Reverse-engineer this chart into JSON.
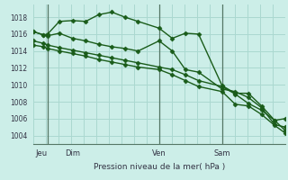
{
  "bg_color": "#cceee8",
  "grid_color": "#aad8d0",
  "line_color": "#1a5c1a",
  "title": "Pression niveau de la mer( hPa )",
  "ylabel_ticks": [
    1004,
    1006,
    1008,
    1010,
    1012,
    1014,
    1016,
    1018
  ],
  "ylim": [
    1003.0,
    1019.5
  ],
  "xlim": [
    0.0,
    9.6
  ],
  "xtick_positions": [
    0.3,
    1.5,
    4.8,
    7.2
  ],
  "xtick_labels": [
    "Jeu",
    "Dim",
    "Ven",
    "Sam"
  ],
  "vlines_x": [
    0.55,
    4.8,
    7.2
  ],
  "series": [
    {
      "x": [
        0.0,
        0.4,
        0.55,
        1.0,
        1.5,
        2.0,
        2.5,
        3.0,
        3.5,
        4.0,
        4.8,
        5.3,
        5.8,
        6.3,
        7.2,
        7.7,
        8.2,
        8.7,
        9.2,
        9.6
      ],
      "y": [
        1016.3,
        1015.9,
        1016.0,
        1017.5,
        1017.6,
        1017.5,
        1018.3,
        1018.6,
        1018.0,
        1017.5,
        1016.7,
        1015.5,
        1016.1,
        1016.0,
        1009.9,
        1009.0,
        1009.0,
        1007.5,
        1005.8,
        1006.0
      ],
      "marker": "D",
      "markersize": 2.5,
      "linewidth": 1.0
    },
    {
      "x": [
        0.0,
        0.4,
        0.55,
        1.0,
        1.5,
        2.0,
        2.5,
        3.0,
        3.5,
        4.0,
        4.8,
        5.3,
        5.8,
        6.3,
        7.2,
        7.7,
        8.2,
        8.7,
        9.2,
        9.6
      ],
      "y": [
        1016.3,
        1015.9,
        1015.8,
        1016.1,
        1015.5,
        1015.2,
        1014.8,
        1014.5,
        1014.3,
        1014.0,
        1015.2,
        1014.0,
        1011.8,
        1011.5,
        1009.5,
        1009.2,
        1008.5,
        1007.3,
        1005.3,
        1005.0
      ],
      "marker": "D",
      "markersize": 2.5,
      "linewidth": 1.0
    },
    {
      "x": [
        0.0,
        0.4,
        0.55,
        1.0,
        1.5,
        2.0,
        2.5,
        3.0,
        3.5,
        4.0,
        4.8,
        5.3,
        5.8,
        6.3,
        7.2,
        7.7,
        8.2,
        8.7,
        9.2,
        9.6
      ],
      "y": [
        1015.2,
        1014.9,
        1014.7,
        1014.4,
        1014.1,
        1013.8,
        1013.5,
        1013.2,
        1012.9,
        1012.6,
        1012.1,
        1011.8,
        1011.2,
        1010.5,
        1009.8,
        1008.9,
        1007.8,
        1007.0,
        1005.8,
        1004.6
      ],
      "marker": "D",
      "markersize": 2.5,
      "linewidth": 1.0
    },
    {
      "x": [
        0.0,
        0.4,
        0.55,
        1.0,
        1.5,
        2.0,
        2.5,
        3.0,
        3.5,
        4.0,
        4.8,
        5.3,
        5.8,
        6.3,
        7.2,
        7.7,
        8.2,
        8.7,
        9.2,
        9.6
      ],
      "y": [
        1014.7,
        1014.5,
        1014.3,
        1014.0,
        1013.7,
        1013.4,
        1013.0,
        1012.7,
        1012.4,
        1012.1,
        1011.8,
        1011.2,
        1010.5,
        1009.8,
        1009.2,
        1007.7,
        1007.5,
        1006.5,
        1005.2,
        1004.3
      ],
      "marker": "D",
      "markersize": 2.5,
      "linewidth": 1.0
    }
  ]
}
